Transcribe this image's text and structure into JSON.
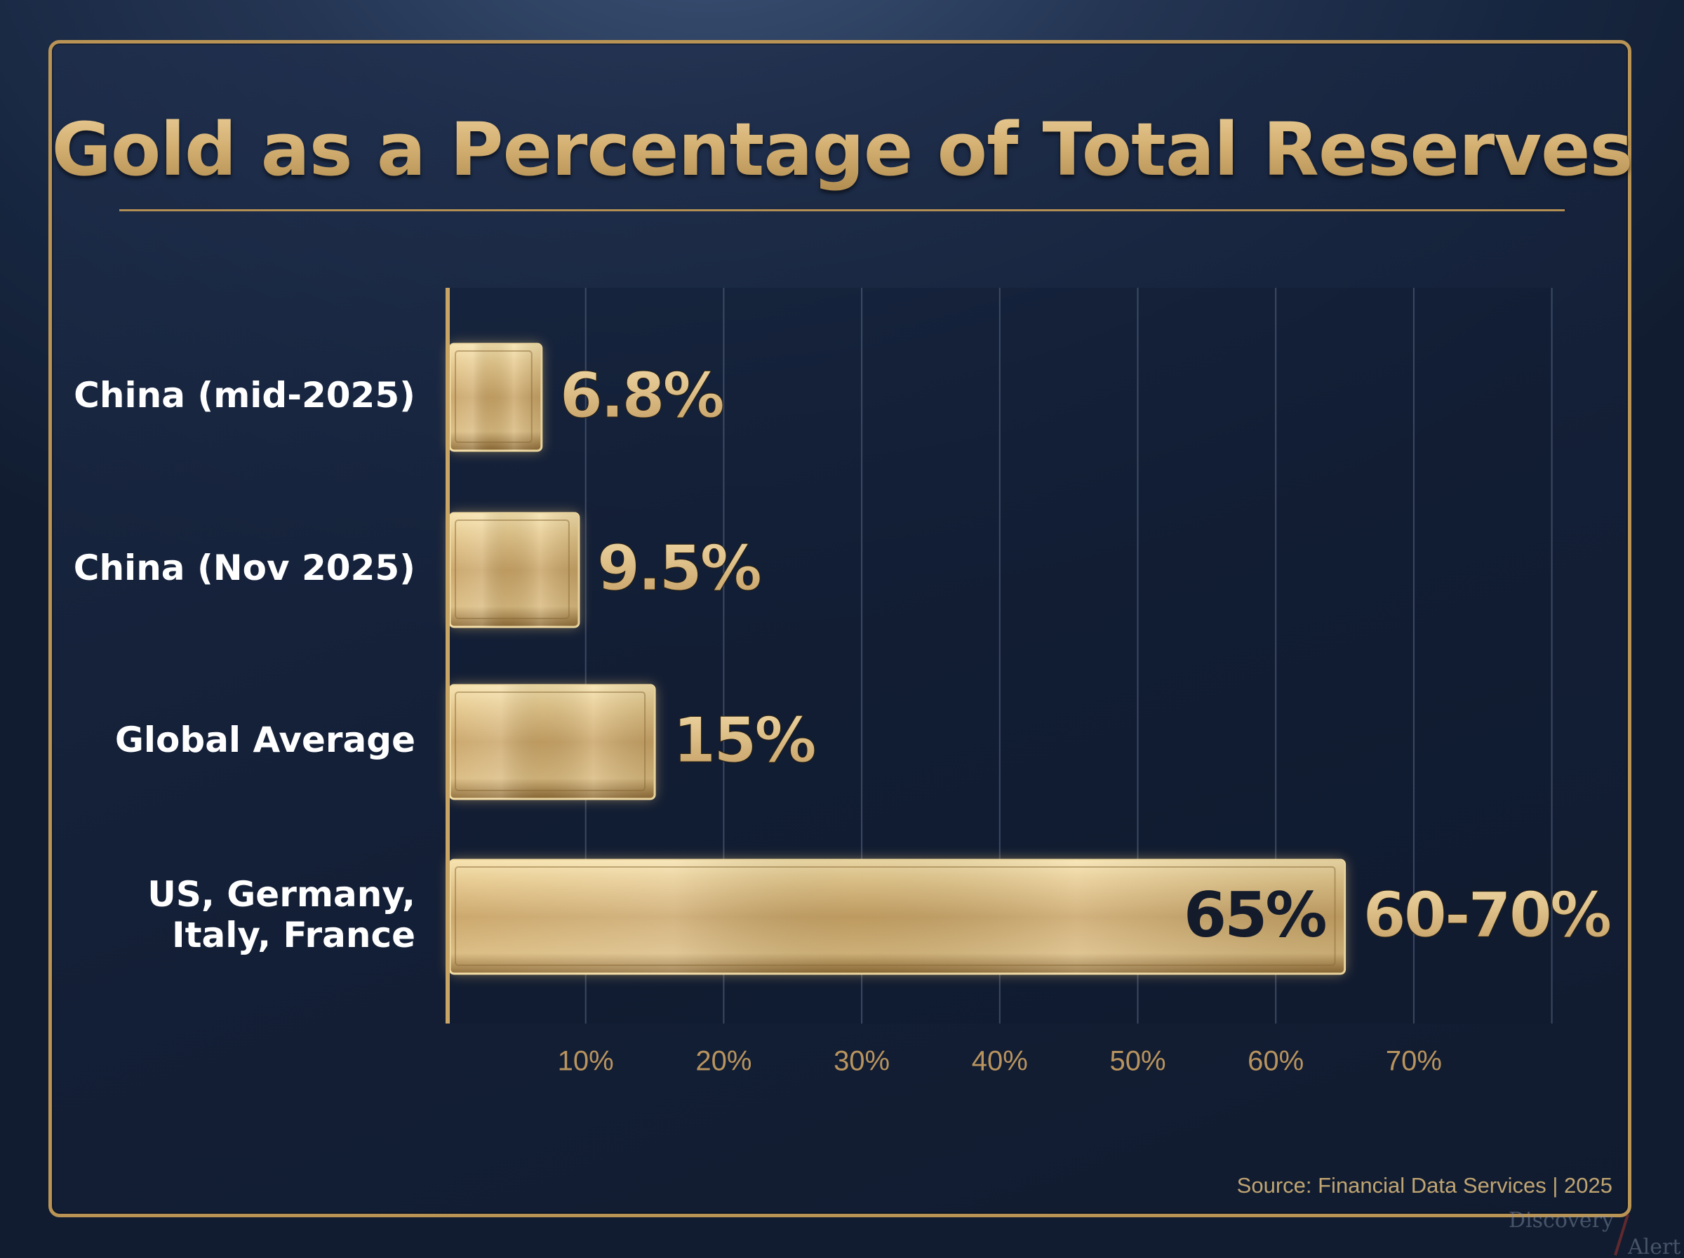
{
  "chart_data": {
    "type": "bar",
    "orientation": "horizontal",
    "title": "Gold as a Percentage of Total Reserves",
    "categories": [
      "China (mid-2025)",
      "China (Nov 2025)",
      "Global Average",
      "US, Germany, Italy, France"
    ],
    "values": [
      6.8,
      9.5,
      15,
      65
    ],
    "data_labels": [
      "6.8%",
      "9.5%",
      "15%",
      "60-70%"
    ],
    "inner_labels": [
      "",
      "",
      "",
      "65%"
    ],
    "x_ticks": [
      10,
      20,
      30,
      40,
      50,
      60,
      70
    ],
    "x_tick_labels": [
      "10%",
      "20%",
      "30%",
      "40%",
      "50%",
      "60%",
      "70%"
    ],
    "xlim": [
      0,
      70
    ],
    "grid": "vertical",
    "source": "Source: Financial Data Services | 2025",
    "colors": {
      "bar_gold": "#d8b676",
      "title_gold": "#d2ad6e",
      "label_gold": "#dcc08a",
      "tick_gold": "#b9945e",
      "inner_label_dark": "#141b2b",
      "category_text": "#ffffff",
      "background": "#172640"
    }
  },
  "watermark": {
    "line1": "Discovery",
    "line2": "Alert"
  }
}
